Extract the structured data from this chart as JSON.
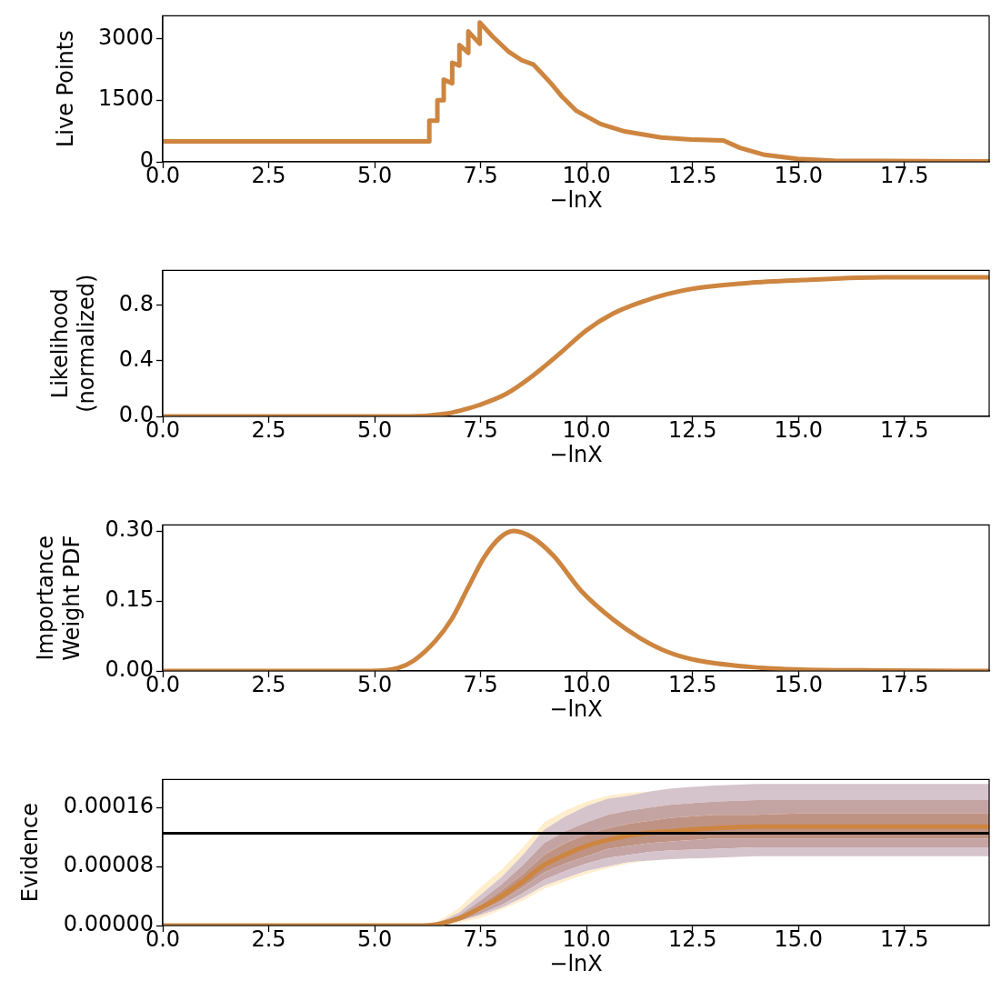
{
  "chart_data": [
    {
      "type": "line",
      "xlabel": "−lnX",
      "ylabel": "Live Points",
      "xlim": [
        0,
        19.5
      ],
      "xticks": [
        {
          "value": 0,
          "label": "0.0"
        },
        2.5,
        {
          "value": 5,
          "label": "5.0"
        },
        7.5,
        {
          "value": 10,
          "label": "10.0"
        },
        12.5,
        {
          "value": 15,
          "label": "15.0"
        },
        17.5
      ],
      "ylim": [
        0,
        3550
      ],
      "yticks": [
        0,
        1500,
        3000
      ],
      "x": [
        0,
        6.29,
        6.29,
        6.48,
        6.48,
        6.63,
        6.63,
        6.83,
        6.83,
        7.0,
        7.0,
        7.21,
        7.21,
        7.48,
        7.48,
        7.78,
        8.17,
        8.47,
        8.74,
        8.9,
        9.16,
        9.4,
        9.76,
        10.33,
        10.9,
        11.76,
        12.48,
        13.23,
        13.62,
        14.2,
        14.98,
        15.84,
        16.9,
        19.5
      ],
      "series": [
        {
          "color": "#cd853f",
          "values": [
            500,
            500,
            1000,
            1000,
            1500,
            1500,
            2000,
            1910,
            2410,
            2340,
            2840,
            2650,
            3170,
            2870,
            3390,
            3050,
            2670,
            2470,
            2370,
            2200,
            1910,
            1610,
            1240,
            920,
            740,
            590,
            540,
            520,
            340,
            170,
            70,
            30,
            20,
            10
          ]
        }
      ]
    },
    {
      "type": "line",
      "xlabel": "−lnX",
      "ylabel": "Likelihood\n(normalized)",
      "xlim": [
        0,
        19.5
      ],
      "xticks": [
        {
          "value": 0,
          "label": "0.0"
        },
        2.5,
        {
          "value": 5,
          "label": "5.0"
        },
        7.5,
        {
          "value": 10,
          "label": "10.0"
        },
        12.5,
        {
          "value": 15,
          "label": "15.0"
        },
        17.5
      ],
      "ylim": [
        0,
        1.05
      ],
      "yticks": [
        {
          "value": 0,
          "label": "0.0"
        },
        0.4,
        0.8
      ],
      "x": [
        0,
        5.8,
        6.69,
        7.0,
        7.45,
        8.09,
        8.72,
        9.36,
        10.0,
        10.63,
        11.27,
        11.91,
        12.55,
        13.82,
        15.09,
        17.0,
        19.5
      ],
      "series": [
        {
          "color": "#cd853f",
          "values": [
            0.0,
            0.0,
            0.02,
            0.04,
            0.08,
            0.16,
            0.29,
            0.45,
            0.62,
            0.74,
            0.82,
            0.88,
            0.92,
            0.96,
            0.98,
            1.0,
            1.0
          ]
        }
      ]
    },
    {
      "type": "line",
      "xlabel": "−lnX",
      "ylabel": "Importance\nWeight PDF",
      "xlim": [
        0,
        19.5
      ],
      "xticks": [
        {
          "value": 0,
          "label": "0.0"
        },
        2.5,
        {
          "value": 5,
          "label": "5.0"
        },
        7.5,
        {
          "value": 10,
          "label": "10.0"
        },
        12.5,
        {
          "value": 15,
          "label": "15.0"
        },
        17.5
      ],
      "ylim": [
        0,
        0.313
      ],
      "yticks": [
        {
          "value": 0,
          "label": "0.00"
        },
        0.15,
        {
          "value": 0.3,
          "label": "0.30"
        }
      ],
      "x": [
        0,
        4.9,
        5.54,
        5.92,
        6.43,
        6.81,
        7.2,
        7.58,
        7.96,
        8.28,
        8.72,
        9.23,
        9.87,
        10.63,
        11.27,
        11.91,
        12.55,
        13.82,
        15.09,
        17.0,
        19.5
      ],
      "series": [
        {
          "color": "#cd853f",
          "values": [
            0,
            0,
            0.006,
            0.022,
            0.064,
            0.11,
            0.178,
            0.243,
            0.286,
            0.3,
            0.286,
            0.246,
            0.172,
            0.11,
            0.07,
            0.041,
            0.024,
            0.009,
            0.003,
            0.001,
            0
          ]
        }
      ]
    },
    {
      "type": "line",
      "xlabel": "−lnX",
      "ylabel": "Evidence",
      "xlim": [
        0,
        19.5
      ],
      "xticks": [
        {
          "value": 0,
          "label": "0.0"
        },
        2.5,
        {
          "value": 5,
          "label": "5.0"
        },
        7.5,
        {
          "value": 10,
          "label": "10.0"
        },
        12.5,
        {
          "value": 15,
          "label": "15.0"
        },
        17.5
      ],
      "ylim": [
        0,
        0.000198
      ],
      "yticks": [
        {
          "value": 0,
          "label": "0.00000"
        },
        {
          "value": 8e-05,
          "label": "0.00008"
        },
        {
          "value": 0.00016,
          "label": "0.00016"
        }
      ],
      "x": [
        0,
        6,
        6.5,
        7,
        7.5,
        8,
        8.5,
        9,
        9.5,
        10,
        10.5,
        11,
        11.5,
        12,
        13,
        14,
        15,
        17,
        19.5
      ],
      "series": [
        {
          "color": "#ffedcc",
          "values": [
            null,
            null,
            null,
            null,
            null,
            null,
            null,
            null,
            null,
            null,
            null,
            null,
            null,
            null,
            null,
            null,
            null,
            null,
            null
          ],
          "upper": [
            null,
            0,
            6e-06,
            2.4e-05,
            5.2e-05,
            7.6e-05,
            0.000106,
            0.00014,
            0.000156,
            0.000168,
            0.000176,
            0.00018,
            0.000182,
            null,
            null,
            null,
            null,
            null,
            null
          ],
          "lower": [
            null,
            0,
            4e-06,
            1.8e-05,
            4.2e-05,
            6.6e-05,
            9.6e-05,
            0.00013,
            0.000148,
            0.000162,
            0.000172,
            0.000176,
            0.000182,
            null,
            null,
            null,
            null,
            null,
            null
          ]
        },
        {
          "color": "#d6c4cc",
          "values": [
            null,
            null,
            null,
            null,
            null,
            null,
            null,
            null,
            null,
            null,
            null,
            null,
            null,
            null,
            null,
            null,
            null,
            null,
            null
          ],
          "upper": [
            null,
            0,
            4e-06,
            1.8e-05,
            4.2e-05,
            6.6e-05,
            9.6e-05,
            0.00013,
            0.000148,
            0.000162,
            0.000172,
            0.000176,
            0.000182,
            0.000186,
            0.00019,
            0.000192,
            0.000192,
            0.000192,
            0.000192
          ],
          "lower": [
            null,
            0,
            4e-06,
            1.4e-05,
            3.4e-05,
            5.6e-05,
            8.2e-05,
            0.000112,
            0.000128,
            0.00014,
            0.00015,
            0.000156,
            0.00016,
            0.000164,
            0.000168,
            0.00017,
            0.00017,
            0.00017,
            0.00017
          ]
        },
        {
          "color": "#c4a4a3",
          "values": [
            null,
            null,
            null,
            null,
            null,
            null,
            null,
            null,
            null,
            null,
            null,
            null,
            null,
            null,
            null,
            null,
            null,
            null,
            null
          ],
          "upper": [
            null,
            0,
            4e-06,
            1.4e-05,
            3.4e-05,
            5.6e-05,
            8.2e-05,
            0.000112,
            0.000128,
            0.00014,
            0.00015,
            0.000156,
            0.00016,
            0.000164,
            0.000168,
            0.00017,
            0.00017,
            0.00017,
            0.00017
          ],
          "lower": [
            null,
            0,
            2e-06,
            1.2e-05,
            2.8e-05,
            4.8e-05,
            7e-05,
            9.6e-05,
            0.000112,
            0.000124,
            0.000132,
            0.000138,
            0.000142,
            0.000146,
            0.00015,
            0.00015,
            0.000152,
            0.000152,
            0.000152
          ]
        },
        {
          "color": "#bf9383",
          "values": [
            null,
            null,
            null,
            null,
            null,
            null,
            null,
            null,
            null,
            null,
            null,
            null,
            null,
            null,
            null,
            null,
            null,
            null,
            null
          ],
          "upper": [
            null,
            0,
            2e-06,
            1.2e-05,
            2.8e-05,
            4.8e-05,
            7e-05,
            9.6e-05,
            0.000112,
            0.000124,
            0.000132,
            0.000138,
            0.000142,
            0.000146,
            0.00015,
            0.00015,
            0.000152,
            0.000152,
            0.000152
          ],
          "lower": [
            null,
            0,
            2e-06,
            8e-06,
            2e-05,
            3.4e-05,
            5.2e-05,
            7.2e-05,
            8.4e-05,
            9.4e-05,
            0.000104,
            0.000108,
            0.000112,
            0.000114,
            0.000118,
            0.000118,
            0.000118,
            0.000118,
            0.000118
          ]
        },
        {
          "color": "#c4a4a4",
          "values": [
            null,
            null,
            null,
            null,
            null,
            null,
            null,
            null,
            null,
            null,
            null,
            null,
            null,
            null,
            null,
            null,
            null,
            null,
            null
          ],
          "upper": [
            null,
            0,
            2e-06,
            8e-06,
            2e-05,
            3.4e-05,
            5.2e-05,
            7.2e-05,
            8.4e-05,
            9.4e-05,
            0.000104,
            0.000108,
            0.000112,
            0.000114,
            0.000118,
            0.000118,
            0.000118,
            0.000118,
            0.000118
          ],
          "lower": [
            null,
            0,
            0,
            6e-06,
            1.6e-05,
            2.8e-05,
            4.4e-05,
            6.2e-05,
            7.4e-05,
            8.4e-05,
            9.2e-05,
            9.6e-05,
            0.0001,
            0.000102,
            0.000104,
            0.000106,
            0.000106,
            0.000106,
            0.000106
          ]
        },
        {
          "color": "#d6c4cd",
          "values": [
            null,
            null,
            null,
            null,
            null,
            null,
            null,
            null,
            null,
            null,
            null,
            null,
            null,
            null,
            null,
            null,
            null,
            null,
            null
          ],
          "upper": [
            null,
            0,
            0,
            6e-06,
            1.6e-05,
            2.8e-05,
            4.4e-05,
            6.2e-05,
            7.4e-05,
            8.4e-05,
            9.2e-05,
            9.6e-05,
            0.0001,
            0.000102,
            0.000104,
            0.000106,
            0.000106,
            0.000106,
            0.000106
          ],
          "lower": [
            null,
            0,
            0,
            6e-06,
            1.4e-05,
            2.4e-05,
            3.8e-05,
            5.4e-05,
            6.4e-05,
            7.4e-05,
            8e-05,
            8.6e-05,
            8.8e-05,
            9e-05,
            9.2e-05,
            9.4e-05,
            9.4e-05,
            9.4e-05,
            9.4e-05
          ]
        },
        {
          "color": "#ffedcd",
          "values": [
            null,
            null,
            null,
            null,
            null,
            null,
            null,
            null,
            null,
            null,
            null,
            null,
            null,
            null,
            null,
            null,
            null,
            null,
            null
          ],
          "upper": [
            null,
            0,
            0,
            6e-06,
            1.4e-05,
            2.4e-05,
            3.8e-05,
            5.4e-05,
            6.4e-05,
            7.4e-05,
            8e-05,
            8.6e-05,
            8.8e-05,
            null,
            null,
            null,
            null,
            null,
            null
          ],
          "lower": [
            null,
            0,
            0,
            4e-06,
            1e-05,
            2.2e-05,
            3.4e-05,
            5e-05,
            6e-05,
            7e-05,
            7.8e-05,
            8.4e-05,
            8.8e-05,
            null,
            null,
            null,
            null,
            null,
            null
          ]
        },
        {
          "color": "#cd853f",
          "values": [
            0,
            0,
            2e-06,
            1e-05,
            2.4e-05,
            4e-05,
            6e-05,
            8.2e-05,
            9.6e-05,
            0.000108,
            0.000116,
            0.000122,
            0.000126,
            0.000128,
            0.000132,
            0.000134,
            0.000134,
            0.000134,
            0.000134
          ]
        }
      ],
      "ref_lines": [
        {
          "axis": "y",
          "value": 0.000125,
          "color": "#000000"
        }
      ]
    }
  ]
}
